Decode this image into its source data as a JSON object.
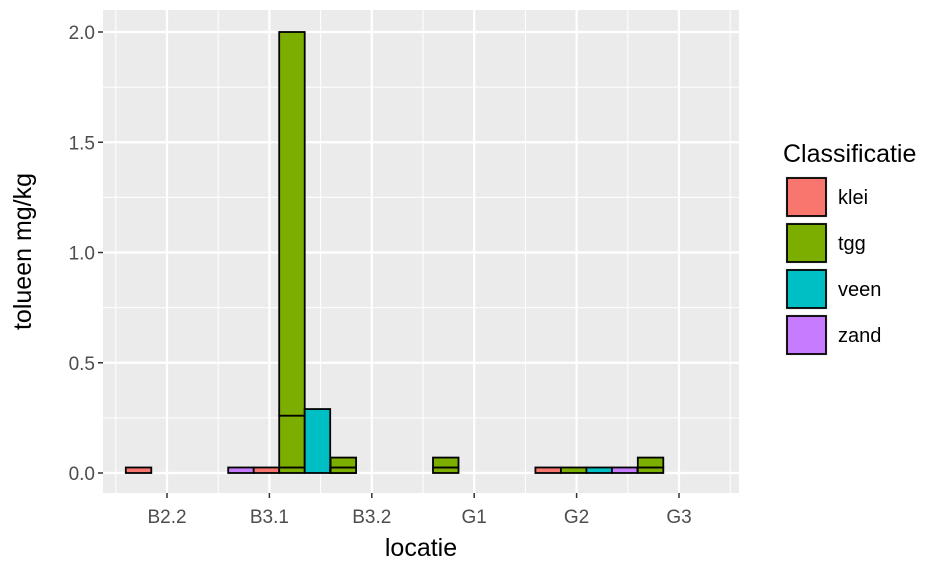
{
  "chart_data": {
    "type": "bar",
    "xlabel": "locatie",
    "ylabel": "tolueen mg/kg",
    "categories": [
      "B2.2",
      "B3.1",
      "B3.2",
      "G1",
      "G2",
      "G3"
    ],
    "ylim": [
      0,
      2.0
    ],
    "yticks": [
      "0.0",
      "0.5",
      "1.0",
      "1.5",
      "2.0"
    ],
    "grid": true,
    "legend": {
      "title": "Classificatie",
      "position": "right",
      "entries": [
        {
          "name": "klei",
          "label": "klei",
          "color": "#F8766D"
        },
        {
          "name": "tgg",
          "label": "tgg",
          "color": "#7CAE00"
        },
        {
          "name": "veen",
          "label": "veen",
          "color": "#00BFC4"
        },
        {
          "name": "zand",
          "label": "zand",
          "color": "#C77CFF"
        }
      ]
    },
    "bars": [
      {
        "category": "B2.2",
        "slot": 0,
        "series": "klei",
        "segments": [
          0.025
        ]
      },
      {
        "category": "B3.1",
        "slot": 0,
        "series": "zand",
        "segments": [
          0.025
        ]
      },
      {
        "category": "B3.1",
        "slot": 1,
        "series": "klei",
        "segments": [
          0.025
        ]
      },
      {
        "category": "B3.1",
        "slot": 2,
        "series": "tgg",
        "segments": [
          0.025,
          0.235,
          1.74
        ]
      },
      {
        "category": "B3.1",
        "slot": 3,
        "series": "veen",
        "segments": [
          0.29
        ]
      },
      {
        "category": "B3.1",
        "slot": 4,
        "series": "zand",
        "segments": [
          0.025
        ]
      },
      {
        "category": "B3.2",
        "slot": 0,
        "series": "tgg",
        "segments": [
          0.025,
          0.045
        ]
      },
      {
        "category": "G1",
        "slot": 0,
        "series": "tgg",
        "segments": [
          0.025,
          0.045
        ]
      },
      {
        "category": "G2",
        "slot": 0,
        "series": "klei",
        "segments": [
          0.025
        ]
      },
      {
        "category": "G2",
        "slot": 1,
        "series": "tgg",
        "segments": [
          0.025
        ]
      },
      {
        "category": "G2",
        "slot": 2,
        "series": "veen",
        "segments": [
          0.025
        ]
      },
      {
        "category": "G2",
        "slot": 3,
        "series": "zand",
        "segments": [
          0.025
        ]
      },
      {
        "category": "G3",
        "slot": 0,
        "series": "tgg",
        "segments": [
          0.025,
          0.045
        ]
      }
    ]
  }
}
